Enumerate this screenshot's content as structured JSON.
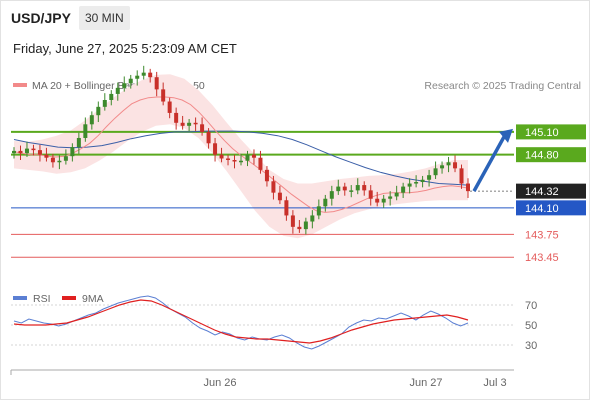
{
  "header": {
    "symbol": "USD/JPY",
    "timeframe": "30 MIN",
    "timestamp": "Friday, June 27, 2025 5:23:09 AM CET"
  },
  "legend": {
    "ma20_label": "MA 20 + Bollinger Bands",
    "ma20_color": "#f28a8a",
    "ma50_label": "MA 50",
    "ma50_color": "#3b5fa8",
    "copyright": "Research © 2025 Trading Central"
  },
  "colors": {
    "up_candle": "#3d8a2c",
    "down_candle": "#c8302a",
    "resistance": "#5aa91e",
    "pivot": "#2457c5",
    "support": "#e45c5c",
    "band_fill": "#fbe3e3",
    "rsi": "#5b7fd3",
    "rsi_ma": "#e02020",
    "current_price_bg": "#222222"
  },
  "chart_data": [
    {
      "type": "candlestick",
      "name": "price",
      "y_range": [
        143.15,
        145.52
      ],
      "x_ticks": [
        "Jun 26",
        "Jun 27",
        "Jul 3"
      ],
      "levels": [
        {
          "label": "145.10",
          "value": 145.1,
          "role": "resistance"
        },
        {
          "label": "144.80",
          "value": 144.8,
          "role": "resistance"
        },
        {
          "label": "144.32",
          "value": 144.32,
          "role": "current"
        },
        {
          "label": "144.10",
          "value": 144.1,
          "role": "pivot"
        },
        {
          "label": "143.75",
          "value": 143.75,
          "role": "support"
        },
        {
          "label": "143.45",
          "value": 143.45,
          "role": "support"
        }
      ],
      "projection": {
        "from": 144.32,
        "to": 145.1
      },
      "closes": [
        144.85,
        144.82,
        144.88,
        144.86,
        144.8,
        144.76,
        144.7,
        144.72,
        144.78,
        144.9,
        145.02,
        145.2,
        145.32,
        145.43,
        145.52,
        145.6,
        145.68,
        145.74,
        145.8,
        145.84,
        145.88,
        145.82,
        145.66,
        145.5,
        145.35,
        145.22,
        145.18,
        145.22,
        145.2,
        145.1,
        144.95,
        144.8,
        144.75,
        144.73,
        144.71,
        144.72,
        144.8,
        144.76,
        144.6,
        144.45,
        144.3,
        144.2,
        144.0,
        143.85,
        143.82,
        143.92,
        144.0,
        144.12,
        144.22,
        144.32,
        144.38,
        144.33,
        144.33,
        144.4,
        144.33,
        144.22,
        144.17,
        144.22,
        144.25,
        144.3,
        144.38,
        144.42,
        144.44,
        144.47,
        144.53,
        144.62,
        144.66,
        144.7,
        144.62,
        144.42,
        144.32
      ],
      "ma20": [
        144.84,
        144.82,
        144.8,
        144.8,
        144.78,
        144.77,
        144.78,
        144.82,
        144.88,
        144.95,
        145.05,
        145.17,
        145.28,
        145.38,
        145.47,
        145.52,
        145.55,
        145.56,
        145.56,
        145.55,
        145.52,
        145.46,
        145.36,
        145.24,
        145.11,
        144.99,
        144.88,
        144.79,
        144.71,
        144.63,
        144.55,
        144.46,
        144.37,
        144.28,
        144.2,
        144.12,
        144.06,
        144.04,
        144.05,
        144.08,
        144.12,
        144.17,
        144.22,
        144.26,
        144.29,
        144.3,
        144.3,
        144.3,
        144.31,
        144.33,
        144.36,
        144.38,
        144.39,
        144.38,
        144.36
      ],
      "ma50": [
        145.0,
        144.96,
        144.93,
        144.9,
        144.89,
        144.9,
        144.92,
        144.96,
        145.01,
        145.05,
        145.08,
        145.1,
        145.1,
        145.11,
        145.11,
        145.11,
        145.1,
        145.08,
        145.05,
        145.0,
        144.93,
        144.85,
        144.77,
        144.7,
        144.63,
        144.57,
        144.52,
        144.48,
        144.45,
        144.42,
        144.41,
        144.4
      ],
      "bands": {
        "upper": [
          144.98,
          144.97,
          145.0,
          145.05,
          145.12,
          145.25,
          145.4,
          145.55,
          145.68,
          145.78,
          145.85,
          145.86,
          145.8,
          145.65,
          145.45,
          145.22,
          145.0,
          144.8,
          144.6,
          144.48,
          144.42,
          144.42,
          144.45,
          144.48,
          144.5,
          144.52,
          144.53,
          144.55,
          144.58,
          144.62,
          144.68,
          144.73,
          144.73
        ],
        "lower": [
          144.62,
          144.6,
          144.58,
          144.55,
          144.57,
          144.62,
          144.72,
          144.84,
          144.98,
          145.1,
          145.18,
          145.2,
          145.15,
          145.02,
          144.82,
          144.58,
          144.32,
          144.06,
          143.85,
          143.73,
          143.7,
          143.75,
          143.85,
          143.95,
          144.03,
          144.08,
          144.12,
          144.15,
          144.17,
          144.19,
          144.2,
          144.2,
          144.2
        ]
      }
    },
    {
      "type": "line",
      "name": "RSI",
      "series": [
        {
          "name": "RSI",
          "values": [
            54,
            52,
            56,
            54,
            52,
            51,
            49,
            51,
            54,
            57,
            60,
            62,
            66,
            69,
            72,
            74,
            76,
            78,
            79,
            77,
            72,
            66,
            62,
            58,
            52,
            47,
            44,
            40,
            43,
            41,
            37,
            35,
            38,
            36,
            35,
            38,
            40,
            37,
            32,
            28,
            26,
            29,
            33,
            37,
            41,
            48,
            52,
            55,
            54,
            57,
            56,
            59,
            62,
            59,
            55,
            60,
            64,
            61,
            57,
            52,
            49,
            52
          ]
        },
        {
          "name": "9MA",
          "values": [
            51,
            50,
            50,
            50,
            51,
            52,
            55,
            58,
            62,
            66,
            70,
            73,
            75,
            74,
            70,
            65,
            60,
            55,
            50,
            45,
            41,
            38,
            37,
            36,
            36,
            35,
            34,
            33,
            32,
            34,
            37,
            41,
            45,
            48,
            51,
            53,
            55,
            56,
            57,
            58,
            59,
            60,
            58,
            55
          ]
        }
      ],
      "y_ticks": [
        70,
        50,
        30
      ],
      "y_range": [
        10,
        90
      ]
    }
  ]
}
